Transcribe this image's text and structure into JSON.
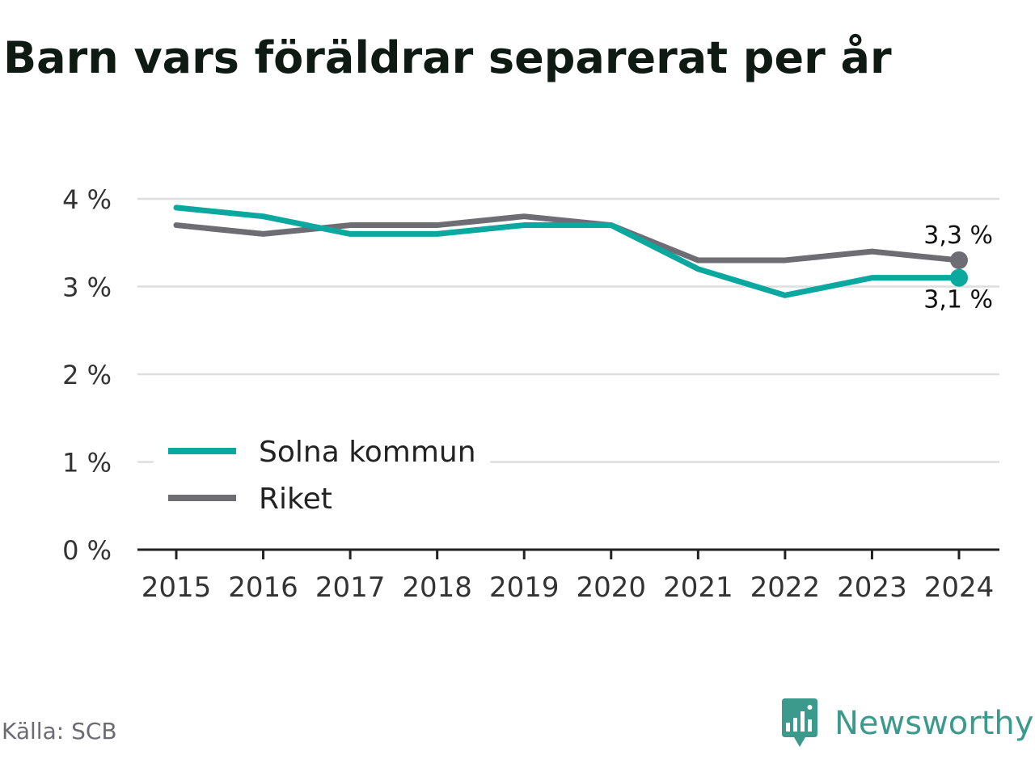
{
  "title": "Barn vars föräldrar separerat per år",
  "source": "Källa: SCB",
  "brand": "Newsworthy",
  "colors": {
    "solna": "#0aa89e",
    "riket": "#6e6d74",
    "grid": "#dedede",
    "axis": "#222222",
    "text": "#333333"
  },
  "chart_data": {
    "type": "line",
    "title": "Barn vars föräldrar separerat per år",
    "x": [
      "2015",
      "2016",
      "2017",
      "2018",
      "2019",
      "2020",
      "2021",
      "2022",
      "2023",
      "2024"
    ],
    "ylim": [
      0,
      4
    ],
    "yticks": [
      0,
      1,
      2,
      3,
      4
    ],
    "ytick_labels": [
      "0 %",
      "1 %",
      "2 %",
      "3 %",
      "4 %"
    ],
    "grid": true,
    "legend_position": "bottom-left",
    "series": [
      {
        "name": "Solna kommun",
        "color": "#0aa89e",
        "values": [
          3.9,
          3.8,
          3.6,
          3.6,
          3.7,
          3.7,
          3.2,
          2.9,
          3.1,
          3.1
        ],
        "end_label": "3,1 %"
      },
      {
        "name": "Riket",
        "color": "#6e6d74",
        "values": [
          3.7,
          3.6,
          3.7,
          3.7,
          3.8,
          3.7,
          3.3,
          3.3,
          3.4,
          3.3
        ],
        "end_label": "3,3 %"
      }
    ]
  }
}
